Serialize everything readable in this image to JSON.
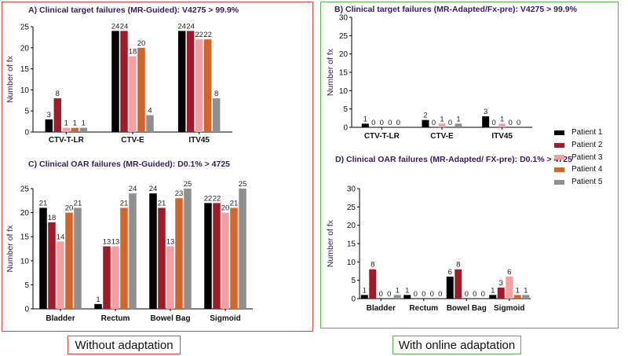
{
  "captions": {
    "left": "Without adaptation",
    "right": "With online adaptation"
  },
  "colors": {
    "title": "#3b1a63",
    "frame_left": "#e0453a",
    "frame_right": "#59b54a",
    "series": [
      "#000000",
      "#9e1b2a",
      "#f4a0a3",
      "#d2662a",
      "#8f8f8f"
    ]
  },
  "legend": [
    "Patient 1",
    "Patient 2",
    "Patient 3",
    "Patient 4",
    "Patient 5"
  ],
  "chart_data": [
    {
      "type": "bar",
      "title": "A) Clinical target failures (MR-Guided): V4275 > 99.9%",
      "xlabel": "",
      "ylabel": "Number of fx",
      "ylim": [
        0,
        25
      ],
      "yticks": [
        0,
        5,
        10,
        15,
        20,
        25
      ],
      "grid": false,
      "categories": [
        "CTV-T-LR",
        "CTV-E",
        "ITV45"
      ],
      "series": [
        {
          "name": "Patient 1",
          "values": [
            3,
            24,
            24
          ]
        },
        {
          "name": "Patient 2",
          "values": [
            8,
            24,
            24
          ]
        },
        {
          "name": "Patient 3",
          "values": [
            1,
            18,
            22
          ]
        },
        {
          "name": "Patient 4",
          "values": [
            1,
            20,
            22
          ]
        },
        {
          "name": "Patient 5",
          "values": [
            1,
            4,
            8
          ]
        }
      ]
    },
    {
      "type": "bar",
      "title": "B) Clinical target failures (MR-Adapted/Fx-pre): V4275 > 99.9%",
      "xlabel": "",
      "ylabel": "Number of fx",
      "ylim": [
        0,
        30
      ],
      "yticks": [
        0,
        5,
        10,
        15,
        20,
        25,
        30
      ],
      "grid": false,
      "categories": [
        "CTV-T-LR",
        "CTV-E",
        "ITV45"
      ],
      "series": [
        {
          "name": "Patient 1",
          "values": [
            1,
            2,
            3
          ]
        },
        {
          "name": "Patient 2",
          "values": [
            0,
            0,
            0
          ]
        },
        {
          "name": "Patient 3",
          "values": [
            0,
            1,
            1
          ]
        },
        {
          "name": "Patient 4",
          "values": [
            0,
            0,
            0
          ]
        },
        {
          "name": "Patient 5",
          "values": [
            0,
            1,
            0
          ]
        }
      ]
    },
    {
      "type": "bar",
      "title": "C) Clinical OAR failures (MR-Guided): D0.1% > 4725",
      "xlabel": "",
      "ylabel": "Number of fx",
      "ylim": [
        0,
        25
      ],
      "yticks": [
        0,
        5,
        10,
        15,
        20,
        25
      ],
      "grid": false,
      "categories": [
        "Bladder",
        "Rectum",
        "Bowel Bag",
        "Sigmoid"
      ],
      "series": [
        {
          "name": "Patient 1",
          "values": [
            21,
            1,
            24,
            22
          ]
        },
        {
          "name": "Patient 2",
          "values": [
            18,
            13,
            21,
            22
          ]
        },
        {
          "name": "Patient 3",
          "values": [
            14,
            13,
            13,
            20
          ]
        },
        {
          "name": "Patient 4",
          "values": [
            20,
            21,
            23,
            21
          ]
        },
        {
          "name": "Patient 5",
          "values": [
            21,
            24,
            25,
            25
          ]
        }
      ]
    },
    {
      "type": "bar",
      "title": "D) Clinical OAR failures (MR-Adapted/ FX-pre): D0.1% > 4725",
      "xlabel": "",
      "ylabel": "Number of fx",
      "ylim": [
        0,
        30
      ],
      "yticks": [
        0,
        5,
        10,
        15,
        20,
        25,
        30
      ],
      "grid": false,
      "categories": [
        "Bladder",
        "Rectum",
        "Bowel Bag",
        "Sigmoid"
      ],
      "series": [
        {
          "name": "Patient 1",
          "values": [
            1,
            1,
            6,
            1
          ]
        },
        {
          "name": "Patient 2",
          "values": [
            8,
            0,
            8,
            3
          ]
        },
        {
          "name": "Patient 3",
          "values": [
            0,
            0,
            0,
            6
          ]
        },
        {
          "name": "Patient 4",
          "values": [
            0,
            0,
            0,
            1
          ]
        },
        {
          "name": "Patient 5",
          "values": [
            1,
            0,
            0,
            1
          ]
        }
      ]
    }
  ]
}
